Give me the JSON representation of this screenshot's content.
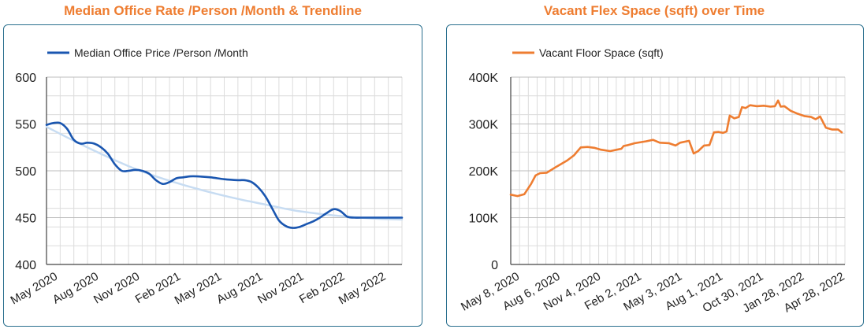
{
  "chart_data": [
    {
      "type": "line",
      "title": "Median Office Rate /Person /Month & Trendline",
      "xlabel": "",
      "ylabel": "",
      "ylim": [
        400,
        600
      ],
      "yticks": [
        400,
        450,
        500,
        550,
        600
      ],
      "ytick_labels": [
        "400",
        "450",
        "500",
        "550",
        "600"
      ],
      "xlim": [
        0,
        26
      ],
      "xticks": [
        0,
        3,
        6,
        9,
        12,
        15,
        18,
        21,
        24
      ],
      "xtick_labels": [
        "May 2020",
        "Aug 2020",
        "Nov 2020",
        "Feb 2021",
        "May 2021",
        "Aug 2021",
        "Nov 2021",
        "Feb 2022",
        "May 2022"
      ],
      "grid": true,
      "legend_position": "top-left",
      "series": [
        {
          "name": "Median Office Price /Person /Month",
          "color": "#1a56b0",
          "points": [
            [
              0,
              549
            ],
            [
              0.5,
              551
            ],
            [
              1,
              551
            ],
            [
              1.5,
              545
            ],
            [
              2,
              533
            ],
            [
              2.5,
              529
            ],
            [
              3,
              530
            ],
            [
              3.5,
              529
            ],
            [
              4,
              525
            ],
            [
              4.5,
              518
            ],
            [
              5,
              507
            ],
            [
              5.5,
              500
            ],
            [
              6,
              500
            ],
            [
              6.5,
              501
            ],
            [
              7,
              500
            ],
            [
              7.5,
              497
            ],
            [
              8,
              490
            ],
            [
              8.5,
              486
            ],
            [
              9,
              488
            ],
            [
              9.5,
              492
            ],
            [
              10,
              493
            ],
            [
              10.5,
              494
            ],
            [
              11,
              494
            ],
            [
              12,
              493
            ],
            [
              13,
              491
            ],
            [
              14,
              490
            ],
            [
              14.5,
              490
            ],
            [
              15,
              488
            ],
            [
              15.5,
              482
            ],
            [
              16,
              473
            ],
            [
              16.5,
              460
            ],
            [
              17,
              447
            ],
            [
              17.5,
              441
            ],
            [
              18,
              439
            ],
            [
              18.5,
              440
            ],
            [
              19,
              443
            ],
            [
              19.5,
              446
            ],
            [
              20,
              450
            ],
            [
              20.5,
              455
            ],
            [
              21,
              459
            ],
            [
              21.5,
              457
            ],
            [
              22,
              451
            ],
            [
              22.5,
              450
            ],
            [
              23,
              450
            ],
            [
              24,
              450
            ],
            [
              25,
              450
            ],
            [
              26,
              450
            ]
          ]
        },
        {
          "name": "Trendline",
          "color": "#c7dcf2",
          "points": [
            [
              0,
              547
            ],
            [
              2,
              532
            ],
            [
              4,
              518
            ],
            [
              6,
              505
            ],
            [
              8,
              494
            ],
            [
              10,
              485
            ],
            [
              12,
              477
            ],
            [
              14,
              470
            ],
            [
              16,
              464
            ],
            [
              18,
              458
            ],
            [
              20,
              454
            ],
            [
              22,
              451
            ],
            [
              24,
              449
            ],
            [
              26,
              448
            ]
          ]
        }
      ]
    },
    {
      "type": "line",
      "title": "Vacant Flex Space (sqft) over Time",
      "xlabel": "",
      "ylabel": "",
      "ylim": [
        0,
        400000
      ],
      "yticks": [
        0,
        100000,
        200000,
        300000,
        400000
      ],
      "ytick_labels": [
        "0",
        "100K",
        "200K",
        "300K",
        "400K"
      ],
      "xlim": [
        0,
        740
      ],
      "xticks": [
        0,
        90,
        180,
        270,
        360,
        450,
        540,
        630,
        720
      ],
      "xtick_labels": [
        "May 8, 2020",
        "Aug 6, 2020",
        "Nov 4, 2020",
        "Feb 2, 2021",
        "May 3, 2021",
        "Aug 1, 2021",
        "Oct 30, 2021",
        "Jan 28, 2022",
        "Apr 28, 2022"
      ],
      "grid": true,
      "legend_position": "top-left",
      "series": [
        {
          "name": "Vacant Floor Space (sqft)",
          "color": "#ee7d31",
          "points": [
            [
              0,
              149000
            ],
            [
              15,
              146000
            ],
            [
              30,
              150000
            ],
            [
              45,
              172000
            ],
            [
              55,
              190000
            ],
            [
              65,
              195000
            ],
            [
              80,
              196000
            ],
            [
              100,
              208000
            ],
            [
              125,
              222000
            ],
            [
              140,
              233000
            ],
            [
              155,
              250000
            ],
            [
              170,
              251000
            ],
            [
              185,
              249000
            ],
            [
              200,
              245000
            ],
            [
              220,
              242000
            ],
            [
              235,
              245000
            ],
            [
              245,
              247000
            ],
            [
              250,
              253000
            ],
            [
              260,
              255000
            ],
            [
              275,
              259000
            ],
            [
              300,
              263000
            ],
            [
              315,
              266000
            ],
            [
              330,
              260000
            ],
            [
              350,
              259000
            ],
            [
              365,
              254000
            ],
            [
              375,
              260000
            ],
            [
              395,
              264000
            ],
            [
              405,
              237000
            ],
            [
              415,
              242000
            ],
            [
              428,
              254000
            ],
            [
              440,
              255000
            ],
            [
              450,
              282000
            ],
            [
              460,
              283000
            ],
            [
              470,
              281000
            ],
            [
              478,
              284000
            ],
            [
              485,
              318000
            ],
            [
              495,
              312000
            ],
            [
              505,
              315000
            ],
            [
              512,
              336000
            ],
            [
              520,
              334000
            ],
            [
              530,
              340000
            ],
            [
              545,
              338000
            ],
            [
              560,
              339000
            ],
            [
              575,
              337000
            ],
            [
              585,
              338000
            ],
            [
              592,
              350000
            ],
            [
              598,
              337000
            ],
            [
              606,
              338000
            ],
            [
              620,
              328000
            ],
            [
              635,
              322000
            ],
            [
              650,
              317000
            ],
            [
              665,
              315000
            ],
            [
              675,
              310000
            ],
            [
              685,
              316000
            ],
            [
              698,
              292000
            ],
            [
              712,
              288000
            ],
            [
              725,
              288000
            ],
            [
              733,
              282000
            ]
          ]
        }
      ]
    }
  ]
}
